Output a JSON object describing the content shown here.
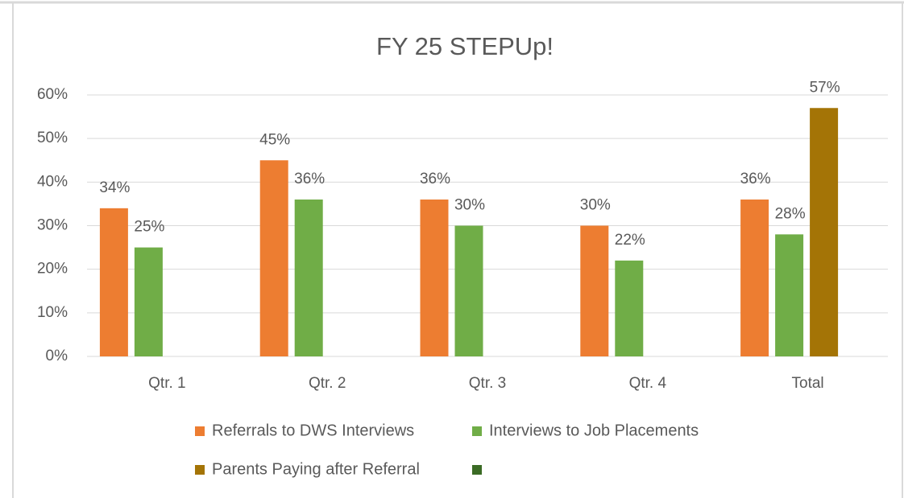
{
  "chart_data": {
    "type": "bar",
    "title": "FY 25 STEPUp!",
    "categories": [
      "Qtr. 1",
      "Qtr. 2",
      "Qtr. 3",
      "Qtr. 4",
      "Total"
    ],
    "series": [
      {
        "name": "Referrals to DWS Interviews",
        "color": "#ed7d31",
        "values": [
          34,
          45,
          36,
          30,
          36
        ],
        "value_labels": [
          "34%",
          "45%",
          "36%",
          "30%",
          "36%"
        ]
      },
      {
        "name": "Interviews to Job Placements",
        "color": "#70ad47",
        "values": [
          25,
          36,
          30,
          22,
          28
        ],
        "value_labels": [
          "25%",
          "36%",
          "30%",
          "22%",
          "28%"
        ]
      },
      {
        "name": "Parents Paying after Referral",
        "color": "#a47406",
        "values": [
          null,
          null,
          null,
          null,
          57
        ],
        "value_labels": [
          null,
          null,
          null,
          null,
          "57%"
        ]
      }
    ],
    "ylim": [
      0,
      60
    ],
    "yticks": [
      {
        "value": 0,
        "label": "0%"
      },
      {
        "value": 10,
        "label": "10%"
      },
      {
        "value": 20,
        "label": "20%"
      },
      {
        "value": 30,
        "label": "30%"
      },
      {
        "value": 40,
        "label": "40%"
      },
      {
        "value": 50,
        "label": "50%"
      },
      {
        "value": 60,
        "label": "60%"
      }
    ],
    "grid": true,
    "legend": "bottom"
  }
}
